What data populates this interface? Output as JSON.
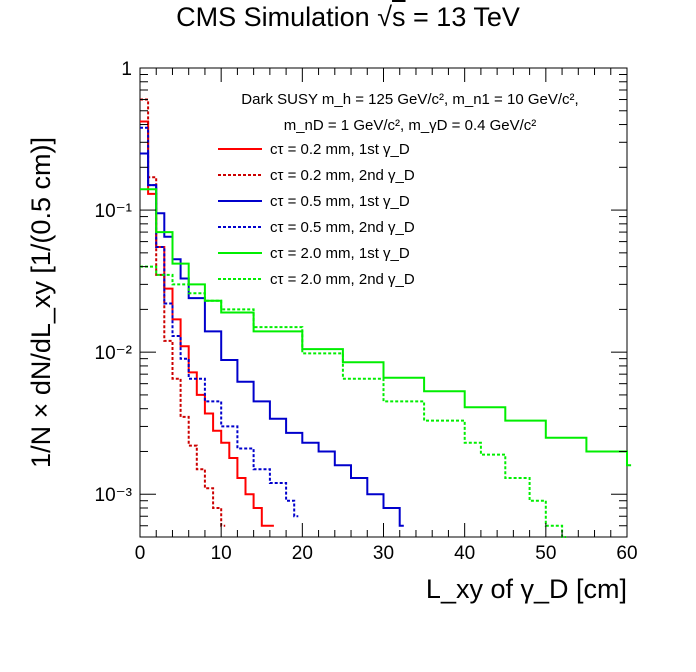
{
  "title": {
    "prefix": "CMS Simulation",
    "sqrt_symbol": "√",
    "s": "s",
    "suffix": " = 13 TeV"
  },
  "chart_data": {
    "type": "line",
    "xlabel": "L_xy of γ_D [cm]",
    "ylabel": "1/N × dN/dL_xy [1/(0.5 cm)]",
    "xlim": [
      0,
      60
    ],
    "ylim": [
      0.0005,
      1
    ],
    "yscale": "log",
    "x_ticks": [
      0,
      10,
      20,
      30,
      40,
      50,
      60
    ],
    "y_ticks": [
      "10⁻³",
      "10⁻²",
      "10⁻¹",
      "1"
    ],
    "grid": false,
    "legend_position": "top-right",
    "legend_header": [
      "Dark SUSY m_h = 125 GeV/c², m_n1 = 10 GeV/c²,",
      "m_nD = 1 GeV/c², m_γD = 0.4 GeV/c²"
    ],
    "series": [
      {
        "name": "cτ = 0.2 mm, 1st γ_D",
        "color": "#ff0000",
        "dash": "solid",
        "points": [
          [
            0,
            0.42
          ],
          [
            1,
            0.13
          ],
          [
            2,
            0.055
          ],
          [
            3,
            0.028
          ],
          [
            4,
            0.017
          ],
          [
            5,
            0.011
          ],
          [
            6,
            0.0072
          ],
          [
            7,
            0.005
          ],
          [
            8,
            0.0037
          ],
          [
            9,
            0.0028
          ],
          [
            10,
            0.0023
          ],
          [
            11,
            0.0018
          ],
          [
            12,
            0.0013
          ],
          [
            13,
            0.001
          ],
          [
            14,
            0.0008
          ],
          [
            15,
            0.0006
          ],
          [
            16,
            0.0006
          ]
        ]
      },
      {
        "name": "cτ = 0.2 mm, 2nd γ_D",
        "color": "#cc0000",
        "dash": "dotted",
        "points": [
          [
            0,
            0.6
          ],
          [
            1,
            0.17
          ],
          [
            2,
            0.035
          ],
          [
            3,
            0.012
          ],
          [
            4,
            0.0065
          ],
          [
            5,
            0.0035
          ],
          [
            6,
            0.0022
          ],
          [
            7,
            0.0015
          ],
          [
            8,
            0.0011
          ],
          [
            9,
            0.0008
          ],
          [
            10,
            0.0006
          ]
        ]
      },
      {
        "name": "cτ = 0.5 mm, 1st γ_D",
        "color": "#0000cc",
        "dash": "solid",
        "points": [
          [
            0,
            0.25
          ],
          [
            1,
            0.15
          ],
          [
            2,
            0.095
          ],
          [
            3,
            0.065
          ],
          [
            4,
            0.045
          ],
          [
            5,
            0.033
          ],
          [
            6,
            0.024
          ],
          [
            8,
            0.014
          ],
          [
            10,
            0.0088
          ],
          [
            12,
            0.0062
          ],
          [
            14,
            0.0045
          ],
          [
            16,
            0.0034
          ],
          [
            18,
            0.0027
          ],
          [
            20,
            0.0023
          ],
          [
            22,
            0.002
          ],
          [
            24,
            0.0016
          ],
          [
            26,
            0.0013
          ],
          [
            28,
            0.001
          ],
          [
            30,
            0.0008
          ],
          [
            32,
            0.0006
          ]
        ]
      },
      {
        "name": "cτ = 0.5 mm, 2nd γ_D",
        "color": "#0000cc",
        "dash": "dotted",
        "points": [
          [
            0,
            0.38
          ],
          [
            1,
            0.15
          ],
          [
            2,
            0.055
          ],
          [
            3,
            0.022
          ],
          [
            4,
            0.013
          ],
          [
            5,
            0.009
          ],
          [
            6,
            0.0065
          ],
          [
            8,
            0.0045
          ],
          [
            10,
            0.003
          ],
          [
            12,
            0.0021
          ],
          [
            14,
            0.0015
          ],
          [
            16,
            0.0012
          ],
          [
            18,
            0.0009
          ],
          [
            19,
            0.0007
          ]
        ]
      },
      {
        "name": "cτ = 2.0 mm, 1st γ_D",
        "color": "#00ee00",
        "dash": "solid",
        "points": [
          [
            0,
            0.14
          ],
          [
            2,
            0.07
          ],
          [
            4,
            0.042
          ],
          [
            6,
            0.03
          ],
          [
            8,
            0.023
          ],
          [
            10,
            0.019
          ],
          [
            14,
            0.014
          ],
          [
            20,
            0.0105
          ],
          [
            25,
            0.0085
          ],
          [
            30,
            0.0066
          ],
          [
            35,
            0.0053
          ],
          [
            40,
            0.0041
          ],
          [
            45,
            0.0033
          ],
          [
            50,
            0.0025
          ],
          [
            55,
            0.002
          ],
          [
            60,
            0.0016
          ]
        ]
      },
      {
        "name": "cτ = 2.0 mm, 2nd γ_D",
        "color": "#00ee00",
        "dash": "dotted",
        "points": [
          [
            0,
            0.04
          ],
          [
            2,
            0.035
          ],
          [
            4,
            0.03
          ],
          [
            6,
            0.026
          ],
          [
            8,
            0.023
          ],
          [
            10,
            0.02
          ],
          [
            14,
            0.015
          ],
          [
            20,
            0.0098
          ],
          [
            25,
            0.0065
          ],
          [
            30,
            0.0045
          ],
          [
            35,
            0.0033
          ],
          [
            40,
            0.0023
          ],
          [
            42,
            0.0019
          ],
          [
            45,
            0.0013
          ],
          [
            48,
            0.0009
          ],
          [
            50,
            0.0006
          ],
          [
            52,
            0.0005
          ]
        ]
      }
    ]
  }
}
